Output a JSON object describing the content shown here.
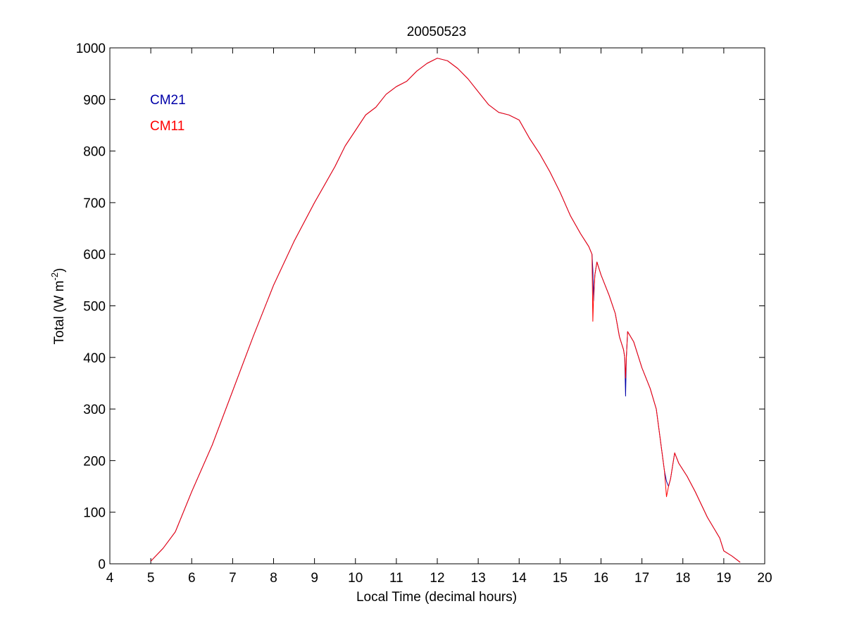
{
  "chart_data": {
    "type": "line",
    "title": "20050523",
    "xlabel": "Local Time (decimal hours)",
    "ylabel_main": "Total (W m",
    "ylabel_sup": "-2",
    "ylabel_close": ")",
    "xlim": [
      4,
      20
    ],
    "ylim": [
      0,
      1000
    ],
    "xticks": [
      4,
      5,
      6,
      7,
      8,
      9,
      10,
      11,
      12,
      13,
      14,
      15,
      16,
      17,
      18,
      19,
      20
    ],
    "yticks": [
      0,
      100,
      200,
      300,
      400,
      500,
      600,
      700,
      800,
      900,
      1000
    ],
    "grid": false,
    "legend_position": "top-left",
    "series": [
      {
        "name": "CM21",
        "color": "#0000a8",
        "x": [
          5.0,
          5.3,
          5.6,
          6.0,
          6.5,
          7.0,
          7.5,
          8.0,
          8.5,
          9.0,
          9.25,
          9.5,
          9.75,
          10.0,
          10.25,
          10.5,
          10.75,
          11.0,
          11.25,
          11.5,
          11.75,
          12.0,
          12.25,
          12.5,
          12.75,
          13.0,
          13.25,
          13.5,
          13.75,
          14.0,
          14.25,
          14.5,
          14.75,
          15.0,
          15.25,
          15.5,
          15.7,
          15.78,
          15.8,
          15.82,
          15.85,
          15.9,
          16.0,
          16.2,
          16.35,
          16.45,
          16.55,
          16.58,
          16.6,
          16.62,
          16.65,
          16.8,
          17.0,
          17.2,
          17.35,
          17.45,
          17.55,
          17.6,
          17.65,
          17.7,
          17.75,
          17.8,
          17.9,
          18.1,
          18.3,
          18.6,
          18.9,
          19.0,
          19.2,
          19.4
        ],
        "y": [
          5,
          30,
          62,
          140,
          230,
          335,
          440,
          540,
          625,
          700,
          735,
          770,
          810,
          840,
          870,
          885,
          910,
          925,
          935,
          955,
          970,
          980,
          975,
          960,
          940,
          915,
          890,
          875,
          870,
          860,
          825,
          795,
          760,
          720,
          675,
          640,
          615,
          600,
          570,
          510,
          560,
          585,
          560,
          520,
          485,
          440,
          415,
          400,
          325,
          400,
          450,
          430,
          380,
          340,
          300,
          240,
          180,
          160,
          150,
          165,
          190,
          215,
          195,
          170,
          140,
          90,
          50,
          25,
          15,
          3
        ]
      },
      {
        "name": "CM11",
        "color": "#ff0000",
        "x": [
          5.0,
          5.3,
          5.6,
          6.0,
          6.5,
          7.0,
          7.5,
          8.0,
          8.5,
          9.0,
          9.25,
          9.5,
          9.75,
          10.0,
          10.25,
          10.5,
          10.75,
          11.0,
          11.25,
          11.5,
          11.75,
          12.0,
          12.25,
          12.5,
          12.75,
          13.0,
          13.25,
          13.5,
          13.75,
          14.0,
          14.25,
          14.5,
          14.75,
          15.0,
          15.25,
          15.5,
          15.7,
          15.78,
          15.8,
          15.82,
          15.85,
          15.9,
          16.0,
          16.2,
          16.35,
          16.45,
          16.55,
          16.58,
          16.6,
          16.62,
          16.65,
          16.8,
          17.0,
          17.2,
          17.35,
          17.45,
          17.55,
          17.6,
          17.65,
          17.7,
          17.75,
          17.8,
          17.9,
          18.1,
          18.3,
          18.6,
          18.9,
          19.0,
          19.2,
          19.4
        ],
        "y": [
          5,
          30,
          62,
          140,
          230,
          335,
          440,
          540,
          625,
          700,
          735,
          770,
          810,
          840,
          870,
          885,
          910,
          925,
          935,
          955,
          970,
          980,
          975,
          960,
          940,
          915,
          890,
          875,
          870,
          860,
          825,
          795,
          760,
          720,
          675,
          640,
          615,
          600,
          470,
          520,
          560,
          585,
          560,
          520,
          485,
          440,
          415,
          400,
          360,
          400,
          450,
          430,
          380,
          340,
          300,
          240,
          180,
          130,
          150,
          165,
          190,
          215,
          195,
          170,
          140,
          90,
          50,
          25,
          15,
          3
        ]
      }
    ]
  }
}
